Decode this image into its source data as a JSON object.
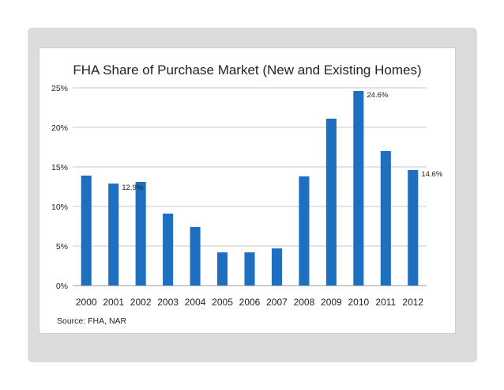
{
  "chart_data": {
    "type": "bar",
    "title": "FHA Share of Purchase Market (New and Existing Homes)",
    "xlabel": "",
    "ylabel": "",
    "categories": [
      "2000",
      "2001",
      "2002",
      "2003",
      "2004",
      "2005",
      "2006",
      "2007",
      "2008",
      "2009",
      "2010",
      "2011",
      "2012"
    ],
    "values": [
      13.9,
      12.9,
      13.1,
      9.1,
      7.4,
      4.2,
      4.2,
      4.7,
      13.8,
      21.1,
      24.6,
      17.0,
      14.6
    ],
    "ylim": [
      0,
      25
    ],
    "yticks": [
      "0%",
      "5%",
      "10%",
      "15%",
      "20%",
      "25%"
    ],
    "data_labels": {
      "1": "12.9%",
      "10": "24.6%",
      "12": "14.6%"
    },
    "grid": true,
    "bar_color": "#1f6fc0",
    "source": "Source: FHA, NAR"
  }
}
